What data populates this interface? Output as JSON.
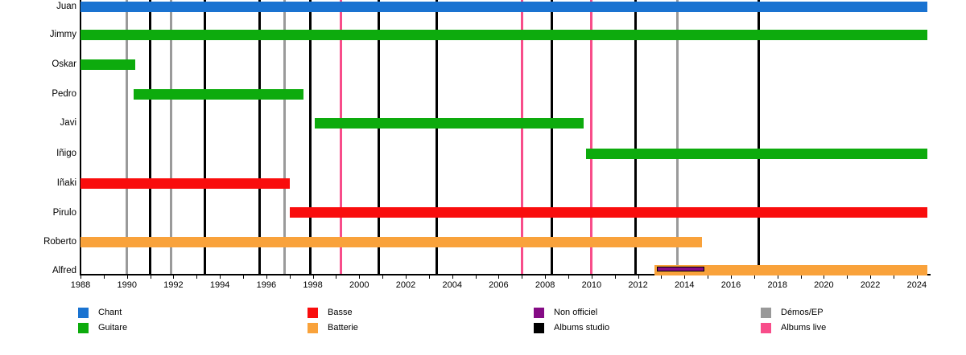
{
  "chart_data": {
    "type": "timeline",
    "title": "",
    "x_axis": {
      "start": 1988,
      "end": 2024.45,
      "year_labels": [
        "1988",
        "1990",
        "1992",
        "1994",
        "1996",
        "1998",
        "2000",
        "2002",
        "2004",
        "2006",
        "2008",
        "2010",
        "2012",
        "2014",
        "2016",
        "2018",
        "2020",
        "2022",
        "2024"
      ],
      "minor_tick_every": 1,
      "label_every": 2
    },
    "role_colors": {
      "chant": "#1a73d1",
      "guitare": "#0dab0d",
      "basse": "#f90d0d",
      "batterie": "#f9a23b",
      "non_officiel": "#850b85"
    },
    "event_colors": {
      "demos_ep": "#9a9a9a",
      "albums_studio": "#000000",
      "albums_live": "#f84d8a"
    },
    "members": [
      {
        "name": "Juan",
        "role": "chant",
        "periods": [
          [
            1988.0,
            2024.45
          ]
        ]
      },
      {
        "name": "Jimmy",
        "role": "guitare",
        "periods": [
          [
            1988.0,
            2024.45
          ]
        ]
      },
      {
        "name": "Oskar",
        "role": "guitare",
        "periods": [
          [
            1988.0,
            1990.35
          ]
        ]
      },
      {
        "name": "Pedro",
        "role": "guitare",
        "periods": [
          [
            1990.3,
            1997.6
          ]
        ]
      },
      {
        "name": "Javi",
        "role": "guitare",
        "periods": [
          [
            1998.1,
            2009.65
          ]
        ]
      },
      {
        "name": "Iñigo",
        "role": "guitare",
        "periods": [
          [
            2009.75,
            2024.45
          ]
        ]
      },
      {
        "name": "Iñaki",
        "role": "basse",
        "periods": [
          [
            1988.0,
            1997.0
          ]
        ]
      },
      {
        "name": "Pirulo",
        "role": "basse",
        "periods": [
          [
            1997.0,
            2024.45
          ]
        ]
      },
      {
        "name": "Roberto",
        "role": "batterie",
        "periods": [
          [
            1988.0,
            2014.75
          ]
        ]
      },
      {
        "name": "Alfred",
        "role": "batterie",
        "periods": [
          [
            2012.7,
            2024.45
          ]
        ],
        "non_officiel_periods": [
          [
            2012.8,
            2014.8
          ]
        ]
      }
    ],
    "events": {
      "demos_ep": [
        1990.0,
        1991.9,
        1996.8,
        2013.7
      ],
      "albums_studio": [
        1991.0,
        1993.35,
        1995.7,
        1997.9,
        2000.85,
        2003.35,
        2008.3,
        2011.9,
        2017.2
      ],
      "albums_live": [
        1999.2,
        2007.0,
        2010.0
      ]
    },
    "legend": [
      {
        "label": "Chant",
        "color": "#1a73d1"
      },
      {
        "label": "Guitare",
        "color": "#0dab0d"
      },
      {
        "label": "Basse",
        "color": "#f90d0d"
      },
      {
        "label": "Batterie",
        "color": "#f9a23b"
      },
      {
        "label": "Non officiel",
        "color": "#850b85"
      },
      {
        "label": "Albums studio",
        "color": "#000000"
      },
      {
        "label": "Démos/EP",
        "color": "#999999"
      },
      {
        "label": "Albums live",
        "color": "#f84d8a"
      }
    ]
  }
}
